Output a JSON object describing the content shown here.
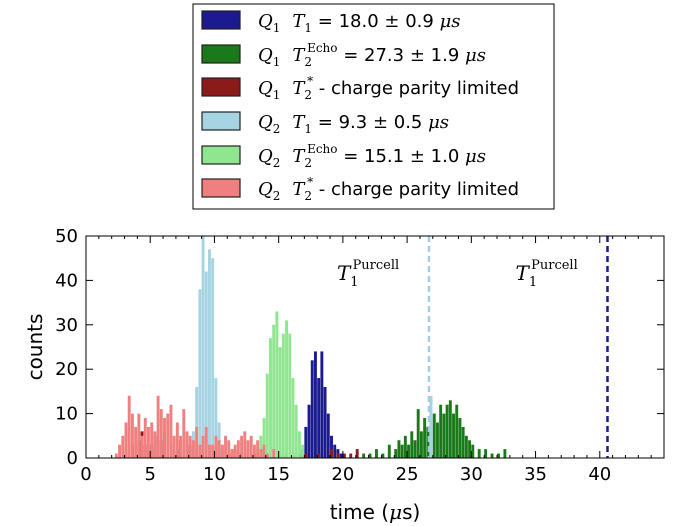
{
  "chart_data": {
    "type": "bar",
    "xlabel": "time (μs)",
    "xlabel_parts": [
      "time (",
      "μ",
      "s)"
    ],
    "ylabel": "counts",
    "xlim": [
      0,
      45
    ],
    "ylim": [
      0,
      50
    ],
    "xticks": [
      "0",
      "5",
      "10",
      "15",
      "20",
      "25",
      "30",
      "35",
      "40"
    ],
    "xtick_values": [
      0,
      5,
      10,
      15,
      20,
      25,
      30,
      35,
      40
    ],
    "yticks": [
      "0",
      "10",
      "20",
      "30",
      "40",
      "50"
    ],
    "ytick_values": [
      0,
      10,
      20,
      30,
      40,
      50
    ],
    "grid": false,
    "legend_position": "top-center (above axes)",
    "bin_width": 0.25,
    "vlines": [
      {
        "x": 26.7,
        "color": "#a6cce3",
        "style": "dashed",
        "label_main": "T",
        "label_sub": "1",
        "label_sup": "Purcell"
      },
      {
        "x": 40.6,
        "color": "#1b1b8f",
        "style": "dashed",
        "label_main": "T",
        "label_sub": "1",
        "label_sup": "Purcell"
      }
    ],
    "series": [
      {
        "name": "Q1 T1 = 18.0 ± 0.9 μs",
        "color": "#1b1b8f",
        "legend": {
          "qubit": "Q",
          "qsub": "1",
          "t": "T",
          "tsub": "1",
          "tsup": "",
          "text": " = 18.0 ",
          "pm": "±",
          "err": " 0.9 ",
          "unit": "μs"
        },
        "bins": [
          [
            16.75,
            2
          ],
          [
            17.0,
            7
          ],
          [
            17.25,
            12
          ],
          [
            17.5,
            22
          ],
          [
            17.75,
            24
          ],
          [
            18.0,
            18
          ],
          [
            18.25,
            24
          ],
          [
            18.5,
            16
          ],
          [
            18.75,
            10
          ],
          [
            19.0,
            5
          ],
          [
            19.25,
            3
          ],
          [
            19.5,
            2
          ],
          [
            19.75,
            1
          ]
        ]
      },
      {
        "name": "Q1 T2Echo = 27.3 ± 1.9 μs",
        "color": "#1a7a1a",
        "legend": {
          "qubit": "Q",
          "qsub": "1",
          "t": "T",
          "tsub": "2",
          "tsup": "Echo",
          "text": " = 27.3 ",
          "pm": "±",
          "err": " 1.9 ",
          "unit": "μs"
        },
        "bins": [
          [
            21.5,
            1
          ],
          [
            22.0,
            1
          ],
          [
            22.5,
            2
          ],
          [
            23.0,
            1
          ],
          [
            23.5,
            3
          ],
          [
            24.0,
            2
          ],
          [
            24.25,
            4
          ],
          [
            24.5,
            3
          ],
          [
            24.75,
            5
          ],
          [
            25.0,
            3
          ],
          [
            25.25,
            6
          ],
          [
            25.5,
            4
          ],
          [
            25.75,
            11
          ],
          [
            26.0,
            6
          ],
          [
            26.25,
            9
          ],
          [
            26.5,
            7
          ],
          [
            26.75,
            13
          ],
          [
            27.0,
            10
          ],
          [
            27.25,
            8
          ],
          [
            27.5,
            12
          ],
          [
            27.75,
            10
          ],
          [
            28.0,
            12
          ],
          [
            28.25,
            13
          ],
          [
            28.5,
            10
          ],
          [
            28.75,
            12
          ],
          [
            29.0,
            9
          ],
          [
            29.25,
            7
          ],
          [
            29.5,
            5
          ],
          [
            29.75,
            4
          ],
          [
            30.0,
            3
          ],
          [
            30.5,
            2
          ],
          [
            31.0,
            2
          ],
          [
            31.5,
            1
          ],
          [
            32.0,
            1
          ],
          [
            32.5,
            2
          ]
        ]
      },
      {
        "name": "Q1 T2* - charge parity limited",
        "color": "#8b1a1a",
        "legend": {
          "qubit": "Q",
          "qsub": "1",
          "t": "T",
          "tsub": "2",
          "tsup": "*",
          "text": " - charge parity limited",
          "pm": "",
          "err": "",
          "unit": ""
        },
        "bins": [
          [
            3.0,
            2
          ],
          [
            3.5,
            3
          ],
          [
            4.0,
            4
          ],
          [
            4.25,
            6
          ],
          [
            4.5,
            3
          ],
          [
            5.0,
            3
          ],
          [
            5.25,
            5
          ],
          [
            5.75,
            4
          ],
          [
            6.0,
            6
          ],
          [
            6.5,
            3
          ],
          [
            7.0,
            2
          ],
          [
            7.25,
            4
          ],
          [
            7.75,
            2
          ],
          [
            8.0,
            3
          ],
          [
            8.5,
            2
          ],
          [
            9.0,
            3
          ],
          [
            9.5,
            2
          ],
          [
            10.0,
            1
          ],
          [
            10.5,
            2
          ],
          [
            11.0,
            1
          ],
          [
            11.5,
            2
          ],
          [
            12.0,
            1
          ],
          [
            12.5,
            2
          ],
          [
            13.0,
            1
          ],
          [
            13.5,
            2
          ],
          [
            14.0,
            1
          ],
          [
            15.0,
            1
          ],
          [
            15.5,
            1
          ],
          [
            16.0,
            1
          ],
          [
            16.5,
            1
          ],
          [
            17.0,
            1
          ],
          [
            18.0,
            1
          ],
          [
            19.0,
            2
          ],
          [
            19.5,
            1
          ],
          [
            20.0,
            1
          ],
          [
            20.5,
            1
          ],
          [
            21.0,
            2
          ]
        ]
      },
      {
        "name": "Q2 T1 = 9.3 ± 0.5 μs",
        "color": "#a6d4e2",
        "legend": {
          "qubit": "Q",
          "qsub": "2",
          "t": "T",
          "tsub": "1",
          "tsup": "",
          "text": " = 9.3 ",
          "pm": "±",
          "err": " 0.5 ",
          "unit": "μs"
        },
        "bins": [
          [
            8.25,
            6
          ],
          [
            8.5,
            16
          ],
          [
            8.75,
            38
          ],
          [
            9.0,
            50
          ],
          [
            9.25,
            42
          ],
          [
            9.5,
            47
          ],
          [
            9.75,
            45
          ],
          [
            10.0,
            18
          ],
          [
            10.25,
            8
          ],
          [
            10.5,
            3
          ],
          [
            26.75,
            14
          ]
        ]
      },
      {
        "name": "Q2 T2Echo = 15.1 ± 1.0 μs",
        "color": "#8fe68f",
        "legend": {
          "qubit": "Q",
          "qsub": "2",
          "t": "T",
          "tsub": "2",
          "tsup": "Echo",
          "text": " = 15.1 ",
          "pm": "±",
          "err": " 1.0 ",
          "unit": "μs"
        },
        "bins": [
          [
            13.25,
            2
          ],
          [
            13.5,
            5
          ],
          [
            13.75,
            9
          ],
          [
            14.0,
            19
          ],
          [
            14.25,
            27
          ],
          [
            14.5,
            30
          ],
          [
            14.75,
            33
          ],
          [
            15.0,
            25
          ],
          [
            15.25,
            28
          ],
          [
            15.5,
            31
          ],
          [
            15.75,
            28
          ],
          [
            16.0,
            18
          ],
          [
            16.25,
            12
          ],
          [
            16.5,
            6
          ],
          [
            16.75,
            3
          ]
        ]
      },
      {
        "name": "Q2 T2* - charge parity limited",
        "color": "#f08080",
        "legend": {
          "qubit": "Q",
          "qsub": "2",
          "t": "T",
          "tsub": "2",
          "tsup": "*",
          "text": " - charge parity limited",
          "pm": "",
          "err": "",
          "unit": ""
        },
        "bins": [
          [
            2.25,
            1
          ],
          [
            2.5,
            3
          ],
          [
            2.75,
            5
          ],
          [
            3.0,
            8
          ],
          [
            3.25,
            14
          ],
          [
            3.5,
            10
          ],
          [
            3.75,
            7
          ],
          [
            4.0,
            10
          ],
          [
            4.25,
            5
          ],
          [
            4.5,
            9
          ],
          [
            4.75,
            7
          ],
          [
            5.0,
            8
          ],
          [
            5.25,
            6
          ],
          [
            5.5,
            14
          ],
          [
            5.75,
            11
          ],
          [
            6.0,
            9
          ],
          [
            6.25,
            10
          ],
          [
            6.5,
            12
          ],
          [
            6.75,
            5
          ],
          [
            7.0,
            8
          ],
          [
            7.25,
            5
          ],
          [
            7.5,
            11
          ],
          [
            7.75,
            6
          ],
          [
            8.0,
            5
          ],
          [
            8.25,
            4
          ],
          [
            8.5,
            7
          ],
          [
            8.75,
            3
          ],
          [
            9.0,
            5
          ],
          [
            9.25,
            7
          ],
          [
            9.5,
            3
          ],
          [
            9.75,
            3
          ],
          [
            10.0,
            5
          ],
          [
            10.25,
            4
          ],
          [
            10.5,
            3
          ],
          [
            10.75,
            5
          ],
          [
            11.0,
            4
          ],
          [
            11.25,
            2
          ],
          [
            11.5,
            3
          ],
          [
            11.75,
            4
          ],
          [
            12.0,
            5
          ],
          [
            12.25,
            6
          ],
          [
            12.5,
            4
          ],
          [
            12.75,
            5
          ],
          [
            13.0,
            3
          ],
          [
            13.25,
            4
          ],
          [
            13.5,
            2
          ],
          [
            13.75,
            3
          ],
          [
            14.0,
            1
          ],
          [
            14.5,
            2
          ]
        ]
      }
    ]
  }
}
